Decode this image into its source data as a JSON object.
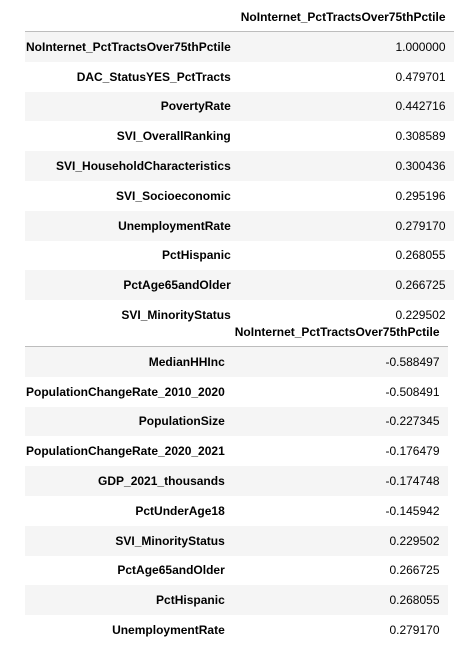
{
  "table1": {
    "column_header": "NoInternet_PctTractsOver75thPctile",
    "rows": [
      {
        "index": "NoInternet_PctTractsOver75thPctile",
        "value": "1.000000"
      },
      {
        "index": "DAC_StatusYES_PctTracts",
        "value": "0.479701"
      },
      {
        "index": "PovertyRate",
        "value": "0.442716"
      },
      {
        "index": "SVI_OverallRanking",
        "value": "0.308589"
      },
      {
        "index": "SVI_HouseholdCharacteristics",
        "value": "0.300436"
      },
      {
        "index": "SVI_Socioeconomic",
        "value": "0.295196"
      },
      {
        "index": "UnemploymentRate",
        "value": "0.279170"
      },
      {
        "index": "PctHispanic",
        "value": "0.268055"
      },
      {
        "index": "PctAge65andOlder",
        "value": "0.266725"
      },
      {
        "index": "SVI_MinorityStatus",
        "value": "0.229502"
      }
    ]
  },
  "table2": {
    "column_header": "NoInternet_PctTractsOver75thPctile",
    "rows": [
      {
        "index": "MedianHHInc",
        "value": "-0.588497"
      },
      {
        "index": "PopulationChangeRate_2010_2020",
        "value": "-0.508491"
      },
      {
        "index": "PopulationSize",
        "value": "-0.227345"
      },
      {
        "index": "PopulationChangeRate_2020_2021",
        "value": "-0.176479"
      },
      {
        "index": "GDP_2021_thousands",
        "value": "-0.174748"
      },
      {
        "index": "PctUnderAge18",
        "value": "-0.145942"
      },
      {
        "index": "SVI_MinorityStatus",
        "value": "0.229502"
      },
      {
        "index": "PctAge65andOlder",
        "value": "0.266725"
      },
      {
        "index": "PctHispanic",
        "value": "0.268055"
      },
      {
        "index": "UnemploymentRate",
        "value": "0.279170"
      }
    ]
  }
}
